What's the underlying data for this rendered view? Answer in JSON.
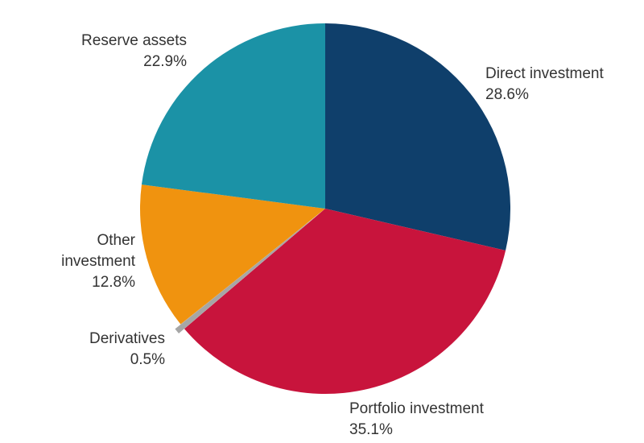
{
  "chart_data": {
    "type": "pie",
    "start_angle": "12 o'clock, clockwise",
    "slices": [
      {
        "label": "Direct investment",
        "value": 28.6,
        "value_label": "28.6%",
        "color": "#0f3f6b"
      },
      {
        "label": "Portfolio investment",
        "value": 35.1,
        "value_label": "35.1%",
        "color": "#c8143c"
      },
      {
        "label": "Derivatives",
        "value": 0.5,
        "value_label": "0.5%",
        "color": "#a6a6a6",
        "exploded": true
      },
      {
        "label": "Other investment",
        "value": 12.8,
        "value_label": "12.8%",
        "color": "#f0930f"
      },
      {
        "label": "Reserve assets",
        "value": 22.9,
        "value_label": "22.9%",
        "color": "#1b92a6"
      }
    ]
  }
}
